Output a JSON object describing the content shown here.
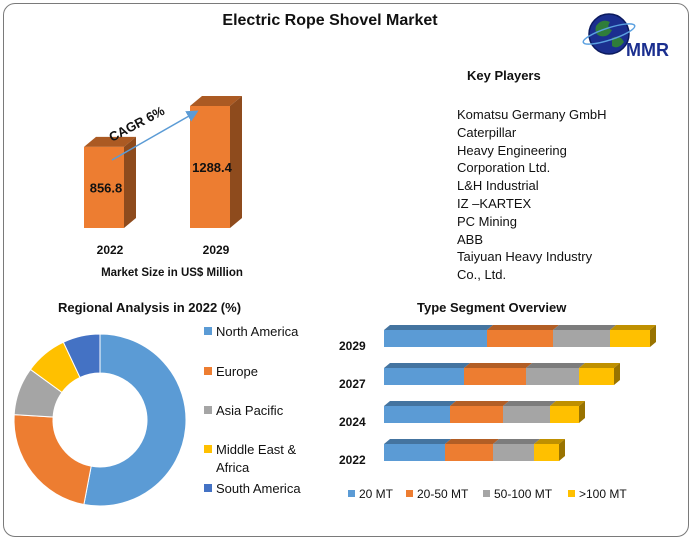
{
  "title": "Electric Rope Shovel Market",
  "logo": {
    "text": "MMR",
    "icon": "globe-icon"
  },
  "market_size": {
    "caption": "Market Size in US$ Million",
    "cagr_label": "CAGR 6%"
  },
  "key_players": {
    "heading": "Key Players",
    "lines": [
      "Komatsu Germany GmbH",
      "Caterpillar",
      "Heavy Engineering",
      "Corporation Ltd.",
      "L&H Industrial",
      "IZ –KARTEX",
      "PC Mining",
      "ABB",
      "Taiyuan Heavy Industry",
      "Co., Ltd."
    ]
  },
  "regional": {
    "title": "Regional Analysis in 2022 (%)"
  },
  "type_segment": {
    "title": "Type Segment Overview"
  },
  "colors": {
    "orange": "#ED7D31",
    "blue": "#5B9BD5",
    "gray": "#A5A5A5",
    "yellow": "#FFC000",
    "dark_blue": "#4472C4"
  },
  "chart_data": [
    {
      "type": "bar",
      "categories": [
        "2022",
        "2029"
      ],
      "values": [
        856.8,
        1288.4
      ],
      "data_labels": [
        "856.8",
        "1288.4"
      ],
      "xlabel": "Market Size in US$ Million",
      "annotation": "CAGR 6%"
    },
    {
      "type": "pie",
      "style": "donut",
      "title": "Regional Analysis in 2022 (%)",
      "categories": [
        "North America",
        "Europe",
        "Asia Pacific",
        "Middle East & Africa",
        "South America"
      ],
      "legend_lines": [
        [
          "North America"
        ],
        [
          "Europe"
        ],
        [
          "Asia Pacific"
        ],
        [
          "Middle East &",
          "Africa"
        ],
        [
          "South America"
        ]
      ],
      "values": [
        53,
        23,
        9,
        8,
        7
      ],
      "colors": [
        "#5B9BD5",
        "#ED7D31",
        "#A5A5A5",
        "#FFC000",
        "#4472C4"
      ],
      "legend": "right"
    },
    {
      "type": "bar",
      "orientation": "horizontal",
      "stacked": true,
      "title": "Type Segment Overview",
      "categories": [
        "2029",
        "2027",
        "2024",
        "2022"
      ],
      "series": [
        {
          "name": "20 MT",
          "color": "#5B9BD5",
          "values": [
            103,
            80,
            66,
            61
          ]
        },
        {
          "name": "20-50 MT",
          "color": "#ED7D31",
          "values": [
            66,
            62,
            53,
            48
          ]
        },
        {
          "name": "50-100 MT",
          "color": "#A5A5A5",
          "values": [
            57,
            53,
            47,
            41
          ]
        },
        {
          "name": ">100 MT",
          "color": "#FFC000",
          "values": [
            40,
            35,
            29,
            25
          ]
        }
      ],
      "legend": "bottom"
    }
  ]
}
